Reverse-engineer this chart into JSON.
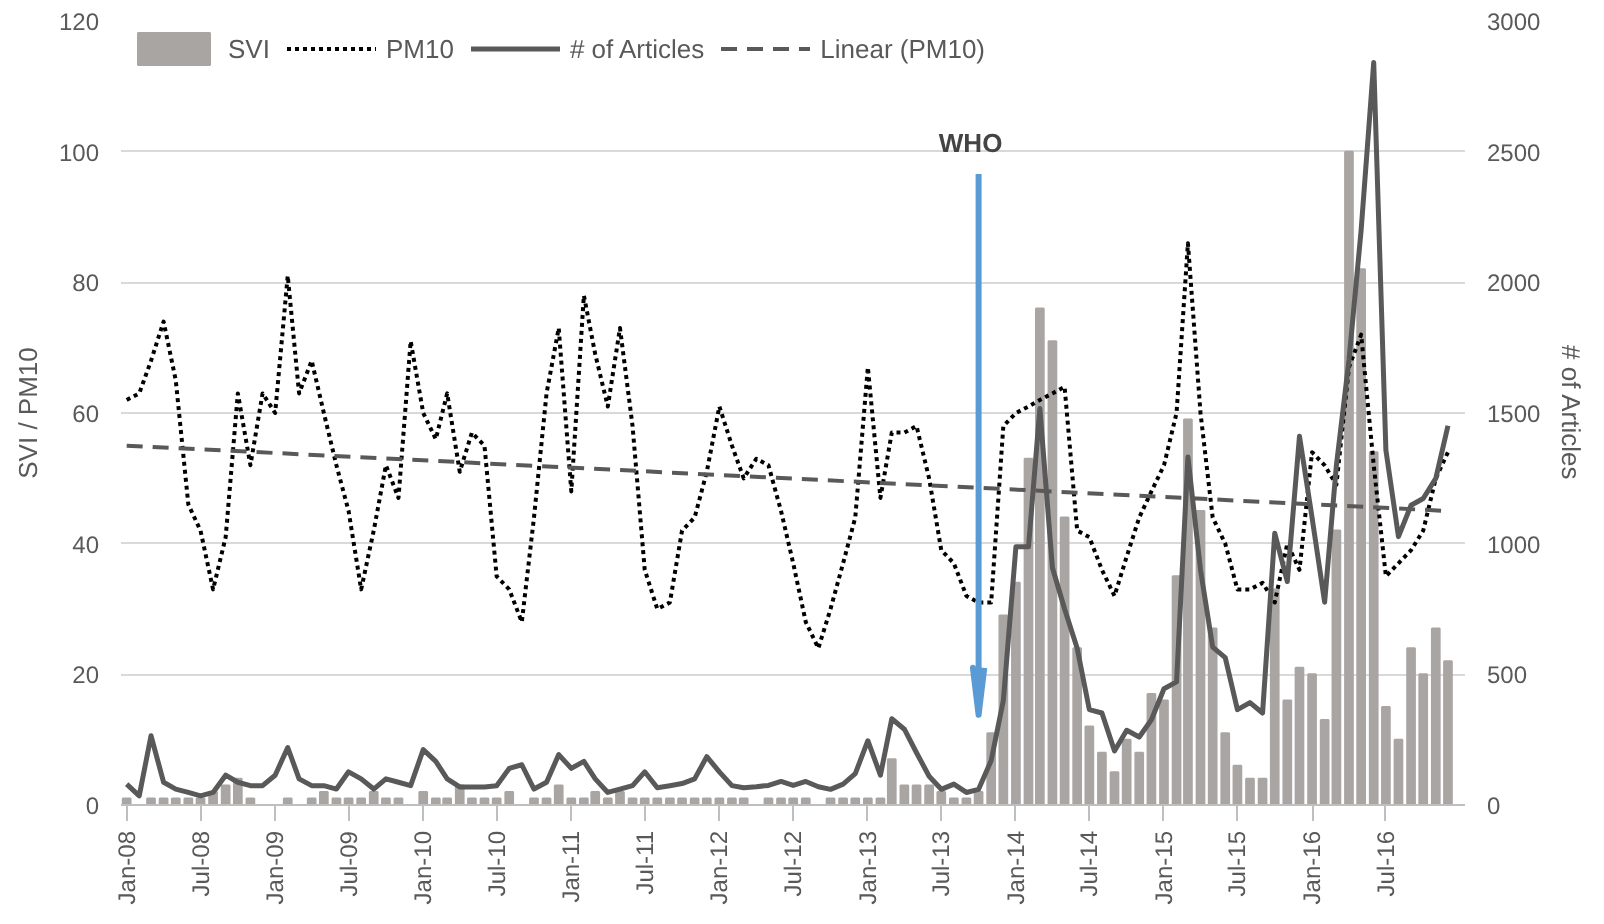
{
  "chart_data": {
    "type": "bar",
    "x": [
      "2008-01",
      "2008-02",
      "2008-03",
      "2008-04",
      "2008-05",
      "2008-06",
      "2008-07",
      "2008-08",
      "2008-09",
      "2008-10",
      "2008-11",
      "2008-12",
      "2009-01",
      "2009-02",
      "2009-03",
      "2009-04",
      "2009-05",
      "2009-06",
      "2009-07",
      "2009-08",
      "2009-09",
      "2009-10",
      "2009-11",
      "2009-12",
      "2010-01",
      "2010-02",
      "2010-03",
      "2010-04",
      "2010-05",
      "2010-06",
      "2010-07",
      "2010-08",
      "2010-09",
      "2010-10",
      "2010-11",
      "2010-12",
      "2011-01",
      "2011-02",
      "2011-03",
      "2011-04",
      "2011-05",
      "2011-06",
      "2011-07",
      "2011-08",
      "2011-09",
      "2011-10",
      "2011-11",
      "2011-12",
      "2012-01",
      "2012-02",
      "2012-03",
      "2012-04",
      "2012-05",
      "2012-06",
      "2012-07",
      "2012-08",
      "2012-09",
      "2012-10",
      "2012-11",
      "2012-12",
      "2013-01",
      "2013-02",
      "2013-03",
      "2013-04",
      "2013-05",
      "2013-06",
      "2013-07",
      "2013-08",
      "2013-09",
      "2013-10",
      "2013-11",
      "2013-12",
      "2014-01",
      "2014-02",
      "2014-03",
      "2014-04",
      "2014-05",
      "2014-06",
      "2014-07",
      "2014-08",
      "2014-09",
      "2014-10",
      "2014-11",
      "2014-12",
      "2015-01",
      "2015-02",
      "2015-03",
      "2015-04",
      "2015-05",
      "2015-06",
      "2015-07",
      "2015-08",
      "2015-09",
      "2015-10",
      "2015-11",
      "2015-12",
      "2016-01",
      "2016-02",
      "2016-03",
      "2016-04",
      "2016-05",
      "2016-06",
      "2016-07",
      "2016-08",
      "2016-09",
      "2016-10",
      "2016-11",
      "2016-12"
    ],
    "series": [
      {
        "name": "SVI",
        "color": "#a9a5a3",
        "values": [
          1,
          0,
          1,
          1,
          1,
          1,
          1,
          2,
          3,
          4,
          1,
          0,
          0,
          1,
          0,
          1,
          2,
          1,
          1,
          1,
          2,
          1,
          1,
          0,
          2,
          1,
          1,
          3,
          1,
          1,
          1,
          2,
          0,
          1,
          1,
          3,
          1,
          1,
          2,
          1,
          2,
          1,
          1,
          1,
          1,
          1,
          1,
          1,
          1,
          1,
          1,
          0,
          1,
          1,
          1,
          1,
          0,
          1,
          1,
          1,
          1,
          1,
          7,
          3,
          3,
          3,
          2,
          1,
          1,
          2,
          11,
          29,
          34,
          53,
          76,
          71,
          44,
          24,
          12,
          8,
          5,
          10,
          8,
          17,
          16,
          35,
          59,
          45,
          27,
          11,
          6,
          4,
          4,
          33,
          16,
          21,
          20,
          13,
          42,
          100,
          82,
          54,
          15,
          10,
          24,
          20,
          27,
          22
        ]
      },
      {
        "name": "PM10",
        "type": "line",
        "line_style": "dotted",
        "color": "#000000",
        "values": [
          62,
          63,
          68,
          74,
          65,
          46,
          42,
          33,
          41,
          63,
          52,
          63,
          60,
          81,
          63,
          68,
          60,
          52,
          45,
          33,
          42,
          52,
          47,
          71,
          60,
          56,
          63,
          51,
          57,
          55,
          35,
          33,
          28,
          44,
          63,
          73,
          48,
          78,
          69,
          61,
          73,
          58,
          36,
          30,
          31,
          42,
          44,
          51,
          61,
          55,
          50,
          53,
          52,
          45,
          37,
          28,
          24,
          30,
          37,
          44,
          67,
          47,
          57,
          57,
          58,
          50,
          39,
          37,
          32,
          31,
          31,
          58,
          60,
          61,
          62,
          63,
          64,
          42,
          41,
          36,
          32,
          38,
          44,
          48,
          52,
          60,
          86,
          60,
          44,
          40,
          33,
          33,
          34,
          31,
          40,
          36,
          54,
          52,
          49,
          67,
          72,
          52,
          35,
          37,
          39,
          42,
          50,
          54
        ]
      },
      {
        "name": "# of Articles",
        "type": "line",
        "line_style": "solid",
        "axis": "y2",
        "color": "#595959",
        "values": [
          80,
          35,
          265,
          87,
          61,
          48,
          35,
          48,
          114,
          87,
          74,
          74,
          114,
          220,
          100,
          74,
          74,
          61,
          127,
          100,
          61,
          100,
          87,
          74,
          212,
          167,
          100,
          69,
          69,
          69,
          74,
          140,
          154,
          61,
          87,
          193,
          140,
          167,
          100,
          48,
          61,
          74,
          127,
          66,
          74,
          82,
          100,
          185,
          127,
          74,
          66,
          70,
          75,
          90,
          75,
          90,
          70,
          60,
          80,
          120,
          246,
          114,
          330,
          290,
          200,
          110,
          60,
          80,
          48,
          60,
          170,
          400,
          988,
          988,
          1517,
          908,
          750,
          600,
          365,
          352,
          207,
          286,
          260,
          326,
          445,
          471,
          1332,
          900,
          604,
          564,
          365,
          392,
          352,
          1040,
          855,
          1411,
          1100,
          776,
          1300,
          1703,
          2200,
          2841,
          1358,
          1027,
          1147,
          1173,
          1250,
          1451
        ]
      },
      {
        "name": "Linear (PM10)",
        "type": "line",
        "line_style": "dashed",
        "color": "#595959",
        "x": [
          "2008-01",
          "2016-12"
        ],
        "values": [
          55,
          45
        ]
      }
    ],
    "ylabel": "SVI / PM10",
    "y2label": "# of Articles",
    "xlim": [
      "2007-12-18",
      "2017-01-12"
    ],
    "xticks": [
      {
        "value": "2008-01",
        "label": "Jan-08"
      },
      {
        "value": "2008-07",
        "label": "Jul-08"
      },
      {
        "value": "2009-01",
        "label": "Jan-09"
      },
      {
        "value": "2009-07",
        "label": "Jul-09"
      },
      {
        "value": "2010-01",
        "label": "Jan-10"
      },
      {
        "value": "2010-07",
        "label": "Jul-10"
      },
      {
        "value": "2011-01",
        "label": "Jan-11"
      },
      {
        "value": "2011-07",
        "label": "Jul-11"
      },
      {
        "value": "2012-01",
        "label": "Jan-12"
      },
      {
        "value": "2012-07",
        "label": "Jul-12"
      },
      {
        "value": "2013-01",
        "label": "Jan-13"
      },
      {
        "value": "2013-07",
        "label": "Jul-13"
      },
      {
        "value": "2014-01",
        "label": "Jan-14"
      },
      {
        "value": "2014-07",
        "label": "Jul-14"
      },
      {
        "value": "2015-01",
        "label": "Jan-15"
      },
      {
        "value": "2015-07",
        "label": "Jul-15"
      },
      {
        "value": "2016-01",
        "label": "Jan-16"
      },
      {
        "value": "2016-07",
        "label": "Jul-16"
      }
    ],
    "ylim": [
      0,
      120
    ],
    "yticks": [
      0,
      20,
      40,
      60,
      80,
      100,
      120
    ],
    "y2lim": [
      0,
      3000
    ],
    "y2ticks": [
      0,
      500,
      1000,
      1500,
      2000,
      2500,
      3000
    ],
    "ref_lines": [
      {
        "axis": "x",
        "value": "2013-10",
        "label": "WHO",
        "color": "#5b9bd5"
      }
    ],
    "grid": "y",
    "legend": "top left",
    "marker": "none"
  }
}
